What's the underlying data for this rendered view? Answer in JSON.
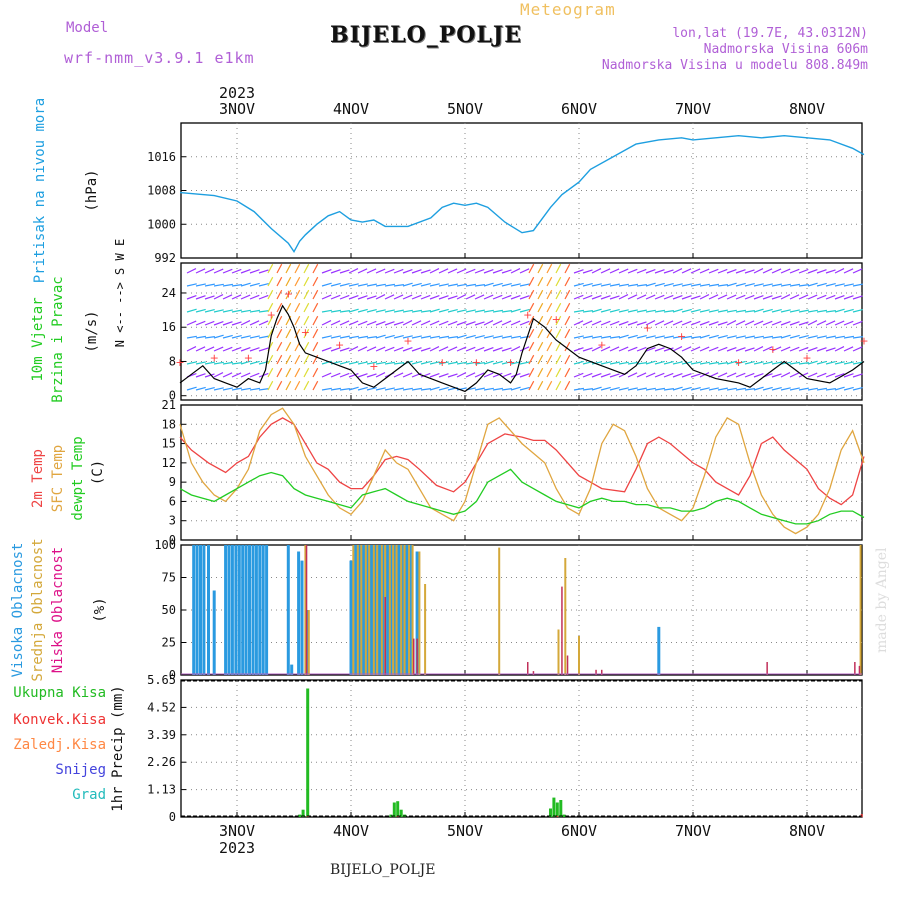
{
  "header": {
    "model_label": "Model",
    "model_name": "wrf-nmm_v3.9.1 e1km",
    "meteogram": "Meteogram",
    "station": "BIJELO_POLJE",
    "lonlat": "lon,lat (19.7E, 43.0312N)",
    "altitude": "Nadmorska Visina 606m",
    "model_altitude": "Nadmorska Visina u modelu 808.849m",
    "footer": "BIJELO_POLJE",
    "made_by": "made by Angel"
  },
  "colors": {
    "pressure": "#1e9fe0",
    "wind_line": "#000000",
    "wind_gust_marker": "#ff3c3c",
    "t2m": "#ee4444",
    "sfc": "#e0a640",
    "dewpt": "#22cc22",
    "high_cloud": "#2a9ae0",
    "mid_cloud": "#d4a83a",
    "low_cloud": "#c0305a",
    "total_precip": "#22bb22",
    "convective": "#ee3333",
    "frozen": "#ff8844",
    "snow": "#4444dd",
    "hail": "#22bbbb"
  },
  "chart_data": [
    {
      "type": "line",
      "panel": "pressure",
      "ylabel": [
        "Pritisak na nivou mora",
        "(hPa)"
      ],
      "y_ticks": [
        992,
        1000,
        1008,
        1016
      ],
      "ylim": [
        992,
        1024
      ],
      "x_start_year": "2023",
      "x_ticks": [
        "3NOV",
        "4NOV",
        "5NOV",
        "6NOV",
        "7NOV",
        "8NOV"
      ],
      "x_range_days": [
        -0.5,
        5.5
      ],
      "grid": true,
      "series": [
        {
          "key": "pressure",
          "x": [
            -0.5,
            -0.2,
            0.0,
            0.15,
            0.3,
            0.45,
            0.5,
            0.55,
            0.6,
            0.7,
            0.8,
            0.9,
            1.0,
            1.1,
            1.2,
            1.3,
            1.5,
            1.7,
            1.8,
            1.9,
            2.0,
            2.1,
            2.2,
            2.35,
            2.5,
            2.6,
            2.75,
            2.85,
            3.0,
            3.1,
            3.3,
            3.5,
            3.7,
            3.9,
            4.0,
            4.2,
            4.4,
            4.6,
            4.8,
            5.0,
            5.2,
            5.4,
            5.5
          ],
          "y": [
            1007.5,
            1006.8,
            1005.5,
            1003,
            999,
            995.5,
            993.5,
            996,
            997.5,
            1000,
            1002,
            1003,
            1001,
            1000.5,
            1001,
            999.5,
            999.5,
            1001.5,
            1004,
            1005,
            1004.5,
            1005,
            1004,
            1000.5,
            998,
            998.5,
            1004,
            1007,
            1010,
            1013,
            1016,
            1019,
            1020,
            1020.5,
            1020,
            1020.5,
            1021,
            1020.5,
            1021,
            1020.5,
            1020,
            1018,
            1016.5
          ]
        }
      ]
    },
    {
      "type": "line",
      "panel": "wind",
      "ylabel": [
        "10m Vjetar",
        "Brzina i Pravac",
        "(m/s)"
      ],
      "y_ticks": [
        0,
        8,
        16,
        24
      ],
      "ylim": [
        -1,
        31
      ],
      "compass": "N <-- --> S  W  E",
      "grid": true,
      "series": [
        {
          "key": "wind_speed",
          "x": [
            -0.5,
            -0.4,
            -0.3,
            -0.2,
            -0.1,
            0.0,
            0.1,
            0.2,
            0.25,
            0.3,
            0.35,
            0.4,
            0.45,
            0.5,
            0.55,
            0.6,
            0.7,
            0.8,
            0.9,
            1.0,
            1.1,
            1.2,
            1.3,
            1.4,
            1.5,
            1.6,
            1.7,
            1.8,
            1.9,
            2.0,
            2.1,
            2.2,
            2.3,
            2.4,
            2.45,
            2.5,
            2.55,
            2.6,
            2.7,
            2.8,
            2.9,
            3.0,
            3.2,
            3.4,
            3.5,
            3.6,
            3.7,
            3.8,
            3.9,
            4.0,
            4.2,
            4.4,
            4.5,
            4.6,
            4.7,
            4.8,
            4.9,
            5.0,
            5.2,
            5.4,
            5.5
          ],
          "y": [
            3,
            5,
            7,
            4,
            3,
            2,
            4,
            3,
            6,
            14,
            18,
            21,
            19,
            16,
            12,
            10,
            9,
            8,
            7,
            6,
            3,
            2,
            4,
            6,
            8,
            5,
            4,
            3,
            2,
            1,
            3,
            6,
            5,
            3,
            5,
            10,
            14,
            18,
            16,
            13,
            11,
            9,
            7,
            5,
            7,
            11,
            12,
            11,
            9,
            6,
            4,
            3,
            2,
            4,
            6,
            8,
            6,
            4,
            3,
            6,
            8
          ]
        }
      ]
    },
    {
      "type": "line",
      "panel": "temperature",
      "ylabel": [
        "2m Temp",
        "SFC Temp",
        "dewpt Temp",
        "(C)"
      ],
      "y_ticks": [
        0,
        3,
        6,
        9,
        12,
        15,
        18,
        21
      ],
      "ylim": [
        0,
        21
      ],
      "grid": true,
      "series": [
        {
          "key": "t2m",
          "name": "2m Temp",
          "x": [
            -0.5,
            -0.4,
            -0.25,
            -0.1,
            0.0,
            0.1,
            0.2,
            0.3,
            0.4,
            0.5,
            0.6,
            0.7,
            0.8,
            0.9,
            1.0,
            1.1,
            1.2,
            1.3,
            1.4,
            1.5,
            1.6,
            1.75,
            1.9,
            2.0,
            2.1,
            2.2,
            2.35,
            2.5,
            2.6,
            2.7,
            2.8,
            3.0,
            3.1,
            3.2,
            3.4,
            3.5,
            3.6,
            3.7,
            3.8,
            4.0,
            4.1,
            4.2,
            4.3,
            4.4,
            4.5,
            4.6,
            4.7,
            4.8,
            5.0,
            5.1,
            5.2,
            5.3,
            5.4,
            5.5
          ],
          "y": [
            16,
            14,
            12,
            10.5,
            12,
            13,
            16,
            18,
            19,
            18,
            15,
            12,
            11,
            9,
            8,
            8,
            10,
            12.5,
            13,
            12.5,
            11,
            8.5,
            7.5,
            9,
            12,
            15,
            16.5,
            16,
            15.5,
            15.5,
            14,
            10,
            9,
            8,
            7.5,
            11,
            15,
            16,
            15,
            12,
            11,
            9,
            8,
            7,
            10,
            15,
            16,
            14,
            11,
            8,
            6.5,
            5.5,
            7,
            13
          ]
        },
        {
          "key": "sfc",
          "name": "SFC Temp",
          "x": [
            -0.5,
            -0.4,
            -0.3,
            -0.2,
            -0.1,
            0.0,
            0.1,
            0.2,
            0.3,
            0.4,
            0.5,
            0.6,
            0.7,
            0.8,
            0.9,
            1.0,
            1.1,
            1.2,
            1.3,
            1.4,
            1.5,
            1.6,
            1.7,
            1.8,
            1.9,
            2.0,
            2.1,
            2.2,
            2.3,
            2.4,
            2.5,
            2.6,
            2.7,
            2.8,
            2.9,
            3.0,
            3.1,
            3.2,
            3.3,
            3.4,
            3.5,
            3.6,
            3.7,
            3.8,
            3.9,
            4.0,
            4.1,
            4.2,
            4.3,
            4.4,
            4.5,
            4.6,
            4.7,
            4.8,
            4.9,
            5.0,
            5.1,
            5.2,
            5.3,
            5.4,
            5.5
          ],
          "y": [
            18,
            12,
            9,
            7,
            6,
            8,
            11,
            17,
            19.5,
            20.5,
            18,
            13,
            10,
            7,
            5,
            4,
            6,
            10,
            14,
            12,
            11,
            8,
            5,
            4,
            3,
            6,
            12,
            18,
            19,
            17,
            15,
            13.5,
            12,
            8,
            5,
            4,
            8,
            15,
            18,
            17,
            13,
            8,
            5,
            4,
            3,
            5,
            10,
            16,
            19,
            18,
            12,
            7,
            4,
            2,
            1,
            2,
            4,
            8,
            14,
            17,
            12
          ]
        },
        {
          "key": "dewpt",
          "name": "dewpt Temp",
          "x": [
            -0.5,
            -0.4,
            -0.3,
            -0.2,
            -0.1,
            0.0,
            0.1,
            0.2,
            0.3,
            0.4,
            0.5,
            0.6,
            0.7,
            0.8,
            0.9,
            1.0,
            1.1,
            1.2,
            1.3,
            1.4,
            1.5,
            1.6,
            1.7,
            1.8,
            1.9,
            2.0,
            2.1,
            2.2,
            2.3,
            2.4,
            2.5,
            2.6,
            2.7,
            2.8,
            2.9,
            3.0,
            3.1,
            3.2,
            3.3,
            3.4,
            3.5,
            3.6,
            3.7,
            3.8,
            3.9,
            4.0,
            4.1,
            4.2,
            4.3,
            4.4,
            4.5,
            4.6,
            4.7,
            4.8,
            4.9,
            5.0,
            5.1,
            5.2,
            5.3,
            5.4,
            5.5
          ],
          "y": [
            8,
            7,
            6.5,
            6,
            7,
            8,
            9,
            10,
            10.5,
            10,
            8,
            7,
            6.5,
            6,
            5.5,
            5,
            7,
            7.5,
            8,
            7,
            6,
            5.5,
            5,
            4.5,
            4,
            4.5,
            6,
            9,
            10,
            11,
            9,
            8,
            7,
            6,
            5.5,
            5,
            6,
            6.5,
            6,
            6,
            5.5,
            5.5,
            5,
            5,
            4.5,
            4.5,
            5,
            6,
            6.5,
            6,
            5,
            4,
            3.5,
            3,
            2.5,
            2.5,
            3,
            4,
            4.5,
            4.5,
            3.5
          ]
        }
      ]
    },
    {
      "type": "bar",
      "panel": "cloud",
      "ylabel": [
        "Visoka Oblacnost",
        "Srednja Oblacnost",
        "Niska Oblacnost",
        "(%)"
      ],
      "y_ticks": [
        0,
        25,
        50,
        75,
        100
      ],
      "ylim": [
        0,
        100
      ],
      "grid": true,
      "series": [
        {
          "key": "high_cloud",
          "name": "Visoka Oblacnost",
          "x": [
            -0.38,
            -0.35,
            -0.32,
            -0.29,
            -0.25,
            -0.2,
            -0.1,
            -0.07,
            -0.04,
            -0.01,
            0.02,
            0.05,
            0.08,
            0.11,
            0.14,
            0.17,
            0.2,
            0.23,
            0.26,
            0.45,
            0.48,
            0.54,
            0.57,
            0.62,
            1.0,
            1.04,
            1.07,
            1.11,
            1.14,
            1.18,
            1.21,
            1.25,
            1.28,
            1.32,
            1.35,
            1.38,
            1.42,
            1.45,
            1.49,
            1.52,
            1.58,
            3.7
          ],
          "y": [
            100,
            100,
            100,
            100,
            100,
            65,
            100,
            100,
            100,
            100,
            100,
            100,
            100,
            100,
            100,
            100,
            100,
            100,
            100,
            100,
            8,
            95,
            88,
            50,
            88,
            100,
            100,
            100,
            100,
            100,
            100,
            100,
            100,
            100,
            100,
            100,
            100,
            100,
            100,
            100,
            95,
            37
          ]
        },
        {
          "key": "mid_cloud",
          "name": "Srednja Oblacnost",
          "x": [
            0.6,
            0.63,
            1.02,
            1.06,
            1.09,
            1.13,
            1.16,
            1.2,
            1.23,
            1.27,
            1.3,
            1.34,
            1.37,
            1.4,
            1.44,
            1.47,
            1.51,
            1.54,
            1.6,
            1.65,
            2.3,
            2.82,
            2.88,
            3.0,
            5.47
          ],
          "y": [
            100,
            50,
            100,
            100,
            100,
            100,
            100,
            100,
            100,
            100,
            100,
            100,
            100,
            100,
            100,
            100,
            100,
            100,
            95,
            70,
            98,
            35,
            90,
            30,
            100
          ]
        },
        {
          "key": "low_cloud",
          "name": "Niska Oblacnost",
          "x": [
            0.61,
            1.3,
            1.55,
            1.58,
            2.55,
            2.6,
            2.85,
            2.9,
            3.15,
            3.2,
            4.65,
            5.42,
            5.46
          ],
          "y": [
            100,
            60,
            28,
            28,
            10,
            3,
            68,
            15,
            4,
            4,
            10,
            10,
            7
          ]
        }
      ]
    },
    {
      "type": "bar",
      "panel": "precip",
      "ylabel": [
        "Ukupna Kisa",
        "Konvek.Kisa",
        "Zaledj.Kisa",
        "Snijeg",
        "Grad",
        "1hr Precip (mm)"
      ],
      "y_ticks": [
        0,
        1.13,
        2.26,
        3.39,
        4.52,
        5.65
      ],
      "ylim": [
        0,
        5.65
      ],
      "x_tick_year": "2023",
      "grid": true,
      "series": [
        {
          "key": "total_precip",
          "name": "Ukupna Kisa",
          "x": [
            0.55,
            0.58,
            0.62,
            1.35,
            1.38,
            1.41,
            1.44,
            1.47,
            2.75,
            2.78,
            2.81,
            2.84,
            2.87
          ],
          "y": [
            0.1,
            0.3,
            5.3,
            0.1,
            0.6,
            0.65,
            0.3,
            0.1,
            0.35,
            0.8,
            0.6,
            0.7,
            0.1
          ]
        },
        {
          "key": "convective",
          "name": "Konvek.Kisa",
          "x": [
            0.62,
            1.41,
            2.81,
            5.48
          ],
          "y": [
            0.05,
            0.05,
            0.05,
            0.12
          ]
        }
      ]
    }
  ]
}
